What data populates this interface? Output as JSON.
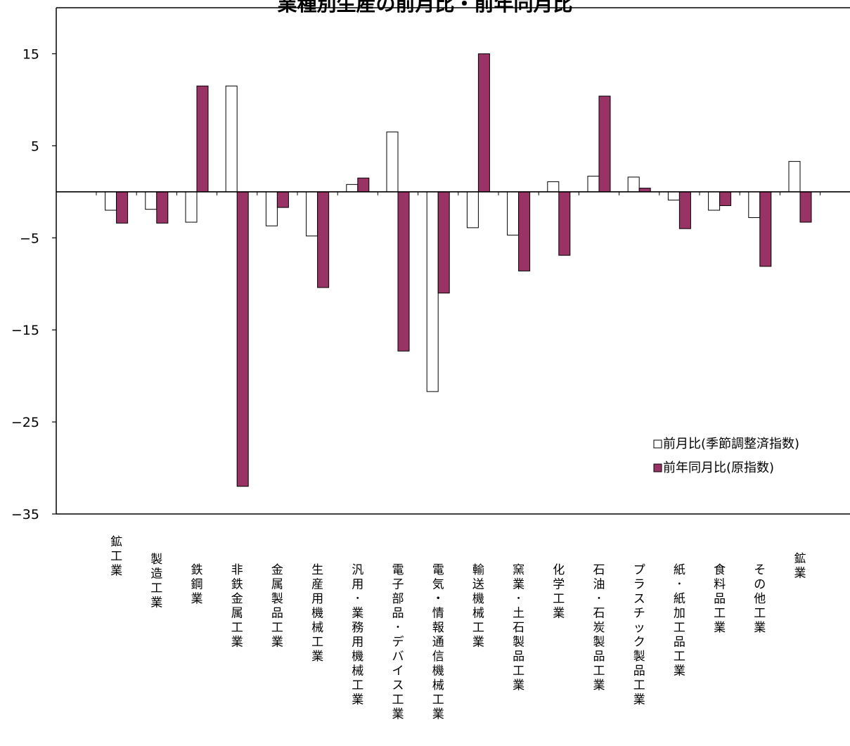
{
  "chart_data": {
    "type": "bar",
    "title": "業種別生産の前月比・前年同月比",
    "ylim": [
      -35,
      20
    ],
    "yticks": [
      15,
      5,
      -5,
      -15,
      -25,
      -35
    ],
    "categories": [
      "鉱工業",
      "製造工業",
      "鉄鋼業",
      "非鉄金属工業",
      "金属製品工業",
      "生産用機械工業",
      "汎用･業務用機械工業",
      "電子部品･デバイス工業",
      "電気・情報通信機械工業",
      "輸送機械工業",
      "窯業･土石製品工業",
      "化学工業",
      "石油･石炭製品工業",
      "プラスチック製品工業",
      "紙･紙加工品工業",
      "食料品工業",
      "その他工業",
      "鉱業"
    ],
    "series": [
      {
        "name": "前月比(季節調整済指数)",
        "color": "#ffffff",
        "values": [
          -2.0,
          -1.9,
          -3.3,
          11.5,
          -3.7,
          -4.8,
          0.8,
          6.5,
          -21.7,
          -3.9,
          -4.7,
          1.1,
          1.7,
          1.6,
          -0.9,
          -2.0,
          -2.8,
          3.3
        ]
      },
      {
        "name": "前年同月比(原指数)",
        "color": "#993366",
        "values": [
          -3.4,
          -3.4,
          11.5,
          -32.0,
          -1.7,
          -10.4,
          1.5,
          -17.3,
          -11.0,
          15.0,
          -8.6,
          -6.9,
          10.4,
          0.4,
          -4.0,
          -1.5,
          -8.1,
          -3.3
        ]
      }
    ],
    "colors": {
      "axis": "#000000",
      "series1_fill": "#ffffff",
      "series2_fill": "#993366"
    }
  }
}
